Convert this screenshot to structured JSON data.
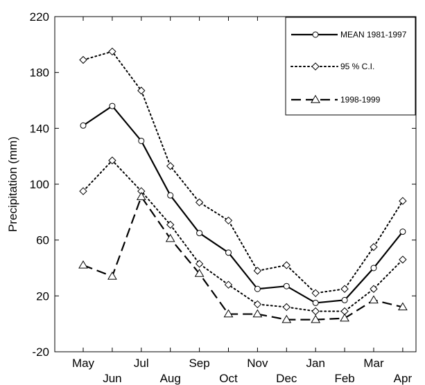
{
  "chart_data": {
    "type": "line",
    "xlabel": "",
    "ylabel": "Precipitation (mm)",
    "ylim": [
      -20,
      220
    ],
    "yticks": [
      -20,
      20,
      60,
      100,
      140,
      180,
      220
    ],
    "categories": [
      "May",
      "Jun",
      "Jul",
      "Aug",
      "Sep",
      "Oct",
      "Nov",
      "Dec",
      "Jan",
      "Feb",
      "Mar",
      "Apr"
    ],
    "grid": false,
    "legend_position": "top-right",
    "series": [
      {
        "name": "MEAN 1981-1997",
        "style": "solid",
        "marker": "circle",
        "values": [
          142,
          156,
          131,
          92,
          65,
          51,
          25,
          27,
          15,
          17,
          40,
          66
        ]
      },
      {
        "name": "95 % C.I.",
        "style": "dotted",
        "marker": "diamond",
        "values": [
          189,
          195,
          167,
          113,
          87,
          74,
          38,
          42,
          22,
          25,
          55,
          88
        ]
      },
      {
        "name": "",
        "style": "dotted",
        "marker": "diamond",
        "values": [
          95,
          117,
          95,
          71,
          43,
          28,
          14,
          12,
          9,
          9,
          25,
          46
        ]
      },
      {
        "name": "1998-1999",
        "style": "dashed",
        "marker": "triangle",
        "values": [
          42,
          34,
          91,
          61,
          36,
          7,
          7,
          3,
          3,
          4,
          17,
          12
        ]
      }
    ]
  }
}
